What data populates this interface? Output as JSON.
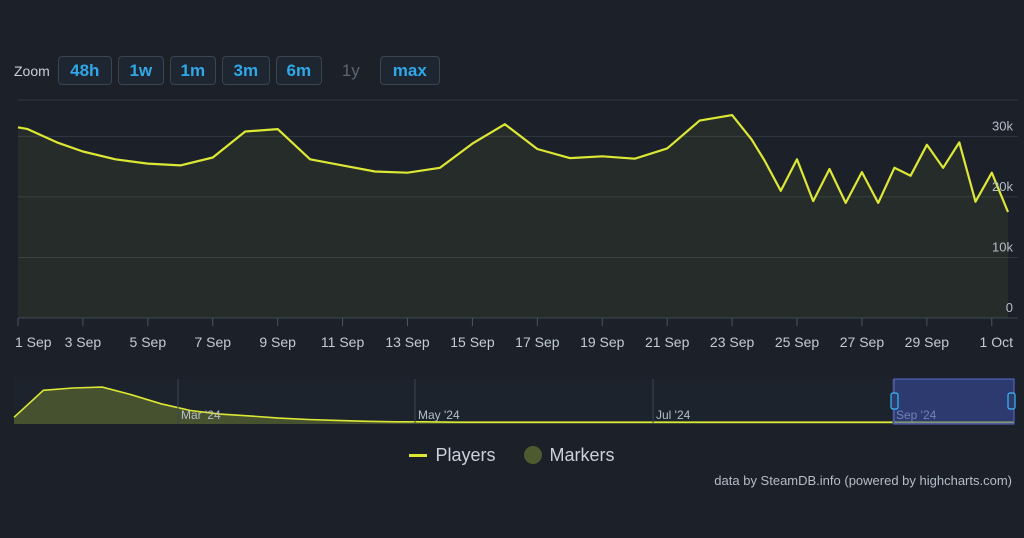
{
  "zoom": {
    "label": "Zoom",
    "buttons": [
      {
        "label": "48h",
        "enabled": true
      },
      {
        "label": "1w",
        "enabled": true
      },
      {
        "label": "1m",
        "enabled": true
      },
      {
        "label": "3m",
        "enabled": true
      },
      {
        "label": "6m",
        "enabled": true
      },
      {
        "label": "1y",
        "enabled": false
      },
      {
        "label": "max",
        "enabled": true
      }
    ]
  },
  "chart_data": {
    "type": "line",
    "x_tick_labels": [
      "1 Sep",
      "3 Sep",
      "5 Sep",
      "7 Sep",
      "9 Sep",
      "11 Sep",
      "13 Sep",
      "15 Sep",
      "17 Sep",
      "19 Sep",
      "21 Sep",
      "23 Sep",
      "25 Sep",
      "27 Sep",
      "29 Sep",
      "1 Oct"
    ],
    "y_tick_labels": [
      "0",
      "10k",
      "20k",
      "30k"
    ],
    "y_ticks": [
      0,
      10000,
      20000,
      30000
    ],
    "ylim": [
      0,
      36000
    ],
    "xlim": [
      0,
      30.5
    ],
    "grid": true,
    "series": [
      {
        "name": "Players",
        "color": "#dde835",
        "x": [
          0,
          0.3,
          1.2,
          2,
          3,
          4,
          5,
          6,
          7,
          8,
          9,
          10,
          11,
          12,
          13,
          14,
          15,
          16,
          17,
          18,
          19,
          20,
          21,
          22,
          22.6,
          23,
          23.5,
          24,
          24.5,
          25,
          25.5,
          26,
          26.5,
          27,
          27.5,
          28,
          28.5,
          29,
          29.5,
          30,
          30.5
        ],
        "y": [
          31500,
          31200,
          29000,
          27500,
          26200,
          25500,
          25200,
          26500,
          30800,
          31200,
          26200,
          25200,
          24200,
          24000,
          24800,
          28800,
          32000,
          27900,
          26400,
          26700,
          26300,
          28000,
          32600,
          33500,
          29500,
          26000,
          21000,
          26200,
          19300,
          24600,
          19000,
          24100,
          19000,
          24800,
          23500,
          28600,
          24800,
          29000,
          19200,
          24000,
          17500
        ]
      }
    ],
    "navigator": {
      "tick_labels": [
        "Mar '24",
        "May '24",
        "Jul '24",
        "Sep '24"
      ],
      "values": [
        0.15,
        0.75,
        0.8,
        0.82,
        0.65,
        0.45,
        0.3,
        0.22,
        0.18,
        0.13,
        0.1,
        0.08,
        0.06,
        0.05,
        0.05,
        0.04,
        0.04,
        0.04,
        0.04,
        0.04,
        0.04,
        0.04,
        0.04,
        0.04,
        0.04,
        0.04,
        0.04,
        0.04,
        0.04,
        0.04,
        0.04,
        0.04,
        0.04,
        0.04,
        0.04
      ]
    },
    "legend": {
      "placement": "bottom-center",
      "items": [
        {
          "label": "Players",
          "color": "#dde835"
        },
        {
          "label": "Markers",
          "color": "#4d5a30"
        }
      ]
    }
  },
  "credit": "data by SteamDB.info (powered by highcharts.com)"
}
